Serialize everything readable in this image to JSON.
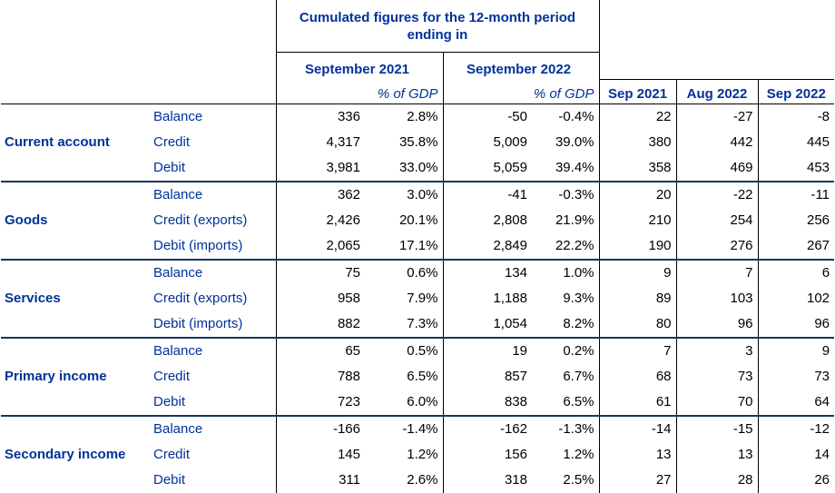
{
  "header": {
    "cumulated_title": "Cumulated figures for the 12-month period ending in",
    "period_2021": "September 2021",
    "period_2022": "September 2022",
    "pct_gdp": "% of GDP",
    "months": [
      "Sep 2021",
      "Aug 2022",
      "Sep 2022"
    ]
  },
  "groups": [
    {
      "name": "Current account",
      "rows": [
        {
          "label": "Balance",
          "v2021": "336",
          "p2021": "2.8%",
          "v2022": "-50",
          "p2022": "-0.4%",
          "m1": "22",
          "m2": "-27",
          "m3": "-8"
        },
        {
          "label": "Credit",
          "v2021": "4,317",
          "p2021": "35.8%",
          "v2022": "5,009",
          "p2022": "39.0%",
          "m1": "380",
          "m2": "442",
          "m3": "445"
        },
        {
          "label": "Debit",
          "v2021": "3,981",
          "p2021": "33.0%",
          "v2022": "5,059",
          "p2022": "39.4%",
          "m1": "358",
          "m2": "469",
          "m3": "453"
        }
      ]
    },
    {
      "name": "Goods",
      "rows": [
        {
          "label": "Balance",
          "v2021": "362",
          "p2021": "3.0%",
          "v2022": "-41",
          "p2022": "-0.3%",
          "m1": "20",
          "m2": "-22",
          "m3": "-11"
        },
        {
          "label": "Credit (exports)",
          "v2021": "2,426",
          "p2021": "20.1%",
          "v2022": "2,808",
          "p2022": "21.9%",
          "m1": "210",
          "m2": "254",
          "m3": "256"
        },
        {
          "label": "Debit (imports)",
          "v2021": "2,065",
          "p2021": "17.1%",
          "v2022": "2,849",
          "p2022": "22.2%",
          "m1": "190",
          "m2": "276",
          "m3": "267"
        }
      ]
    },
    {
      "name": "Services",
      "rows": [
        {
          "label": "Balance",
          "v2021": "75",
          "p2021": "0.6%",
          "v2022": "134",
          "p2022": "1.0%",
          "m1": "9",
          "m2": "7",
          "m3": "6"
        },
        {
          "label": "Credit (exports)",
          "v2021": "958",
          "p2021": "7.9%",
          "v2022": "1,188",
          "p2022": "9.3%",
          "m1": "89",
          "m2": "103",
          "m3": "102"
        },
        {
          "label": "Debit (imports)",
          "v2021": "882",
          "p2021": "7.3%",
          "v2022": "1,054",
          "p2022": "8.2%",
          "m1": "80",
          "m2": "96",
          "m3": "96"
        }
      ]
    },
    {
      "name": "Primary income",
      "rows": [
        {
          "label": "Balance",
          "v2021": "65",
          "p2021": "0.5%",
          "v2022": "19",
          "p2022": "0.2%",
          "m1": "7",
          "m2": "3",
          "m3": "9"
        },
        {
          "label": "Credit",
          "v2021": "788",
          "p2021": "6.5%",
          "v2022": "857",
          "p2022": "6.7%",
          "m1": "68",
          "m2": "73",
          "m3": "73"
        },
        {
          "label": "Debit",
          "v2021": "723",
          "p2021": "6.0%",
          "v2022": "838",
          "p2022": "6.5%",
          "m1": "61",
          "m2": "70",
          "m3": "64"
        }
      ]
    },
    {
      "name": "Secondary income",
      "rows": [
        {
          "label": "Balance",
          "v2021": "-166",
          "p2021": "-1.4%",
          "v2022": "-162",
          "p2022": "-1.3%",
          "m1": "-14",
          "m2": "-15",
          "m3": "-12"
        },
        {
          "label": "Credit",
          "v2021": "145",
          "p2021": "1.2%",
          "v2022": "156",
          "p2022": "1.2%",
          "m1": "13",
          "m2": "13",
          "m3": "14"
        },
        {
          "label": "Debit",
          "v2021": "311",
          "p2021": "2.6%",
          "v2022": "318",
          "p2022": "2.5%",
          "m1": "27",
          "m2": "28",
          "m3": "26"
        }
      ]
    }
  ]
}
